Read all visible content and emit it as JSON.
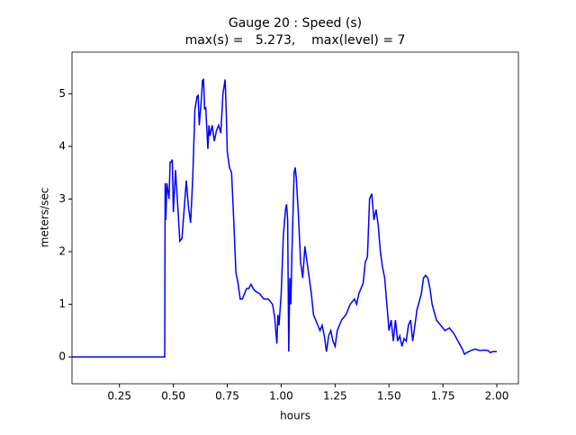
{
  "chart_data": {
    "type": "line",
    "title": "Gauge 20 : Speed (s)",
    "subtitle": "max(s) =   5.273,    max(level) = 7",
    "x_label": "hours",
    "y_label": "meters/sec",
    "color": "#0000ff",
    "x": [
      0.03,
      0.46,
      0.462,
      0.465,
      0.47,
      0.48,
      0.485,
      0.49,
      0.495,
      0.5,
      0.51,
      0.52,
      0.53,
      0.54,
      0.55,
      0.56,
      0.57,
      0.58,
      0.59,
      0.6,
      0.61,
      0.615,
      0.62,
      0.63,
      0.635,
      0.64,
      0.645,
      0.65,
      0.66,
      0.665,
      0.67,
      0.68,
      0.69,
      0.7,
      0.71,
      0.72,
      0.73,
      0.74,
      0.745,
      0.75,
      0.76,
      0.77,
      0.78,
      0.79,
      0.8,
      0.81,
      0.82,
      0.83,
      0.84,
      0.85,
      0.86,
      0.87,
      0.88,
      0.9,
      0.92,
      0.94,
      0.96,
      0.97,
      0.98,
      0.985,
      0.99,
      1.0,
      1.01,
      1.02,
      1.025,
      1.03,
      1.035,
      1.04,
      1.045,
      1.05,
      1.06,
      1.065,
      1.07,
      1.08,
      1.09,
      1.1,
      1.11,
      1.12,
      1.13,
      1.14,
      1.15,
      1.16,
      1.17,
      1.18,
      1.19,
      1.2,
      1.21,
      1.22,
      1.23,
      1.24,
      1.25,
      1.26,
      1.27,
      1.28,
      1.3,
      1.32,
      1.34,
      1.35,
      1.36,
      1.38,
      1.39,
      1.4,
      1.41,
      1.42,
      1.43,
      1.44,
      1.45,
      1.46,
      1.47,
      1.48,
      1.49,
      1.5,
      1.51,
      1.52,
      1.53,
      1.54,
      1.55,
      1.56,
      1.57,
      1.58,
      1.59,
      1.6,
      1.61,
      1.62,
      1.63,
      1.65,
      1.66,
      1.67,
      1.68,
      1.69,
      1.7,
      1.72,
      1.74,
      1.76,
      1.78,
      1.8,
      1.82,
      1.84,
      1.85,
      1.86,
      1.88,
      1.9,
      1.92,
      1.94,
      1.96,
      1.97,
      1.98,
      2.0
    ],
    "values": [
      0,
      0,
      3.3,
      2.6,
      3.3,
      3.0,
      3.7,
      3.7,
      3.75,
      2.75,
      3.55,
      2.9,
      2.2,
      2.25,
      2.8,
      3.35,
      2.85,
      2.55,
      3.4,
      4.7,
      4.95,
      4.97,
      4.4,
      4.9,
      5.25,
      5.27,
      4.7,
      4.75,
      3.95,
      4.4,
      4.2,
      4.4,
      4.1,
      4.3,
      4.4,
      4.25,
      5.0,
      5.27,
      4.7,
      3.9,
      3.6,
      3.5,
      2.6,
      1.6,
      1.4,
      1.1,
      1.1,
      1.2,
      1.3,
      1.3,
      1.38,
      1.3,
      1.25,
      1.2,
      1.1,
      1.1,
      1.0,
      0.75,
      0.25,
      0.8,
      0.6,
      1.2,
      2.3,
      2.8,
      2.9,
      2.6,
      0.1,
      1.5,
      1.0,
      2.0,
      3.5,
      3.6,
      3.4,
      2.7,
      1.8,
      1.5,
      2.1,
      1.8,
      1.5,
      1.2,
      0.8,
      0.7,
      0.6,
      0.5,
      0.6,
      0.4,
      0.1,
      0.4,
      0.5,
      0.3,
      0.2,
      0.5,
      0.6,
      0.7,
      0.8,
      1.0,
      1.1,
      1.0,
      1.2,
      1.4,
      1.8,
      1.9,
      3.0,
      3.1,
      2.6,
      2.8,
      2.5,
      2.0,
      1.7,
      1.5,
      1.0,
      0.5,
      0.7,
      0.3,
      0.7,
      0.3,
      0.4,
      0.2,
      0.35,
      0.3,
      0.6,
      0.7,
      0.3,
      0.6,
      0.9,
      1.2,
      1.5,
      1.55,
      1.5,
      1.3,
      1.0,
      0.7,
      0.6,
      0.5,
      0.55,
      0.45,
      0.3,
      0.15,
      0.05,
      0.08,
      0.12,
      0.15,
      0.12,
      0.13,
      0.12,
      0.08,
      0.1,
      0.1
    ],
    "xlim": [
      0.03,
      2.1
    ],
    "ylim": [
      -0.51,
      5.79
    ],
    "xticks": [
      0.25,
      {
        "value": 0.5,
        "label": "0.50"
      },
      0.75,
      {
        "value": 1.0,
        "label": "1.00"
      },
      1.25,
      {
        "value": 1.5,
        "label": "1.50"
      },
      1.75,
      {
        "value": 2.0,
        "label": "2.00"
      }
    ],
    "yticks": [
      0,
      1,
      2,
      3,
      4,
      5
    ]
  }
}
